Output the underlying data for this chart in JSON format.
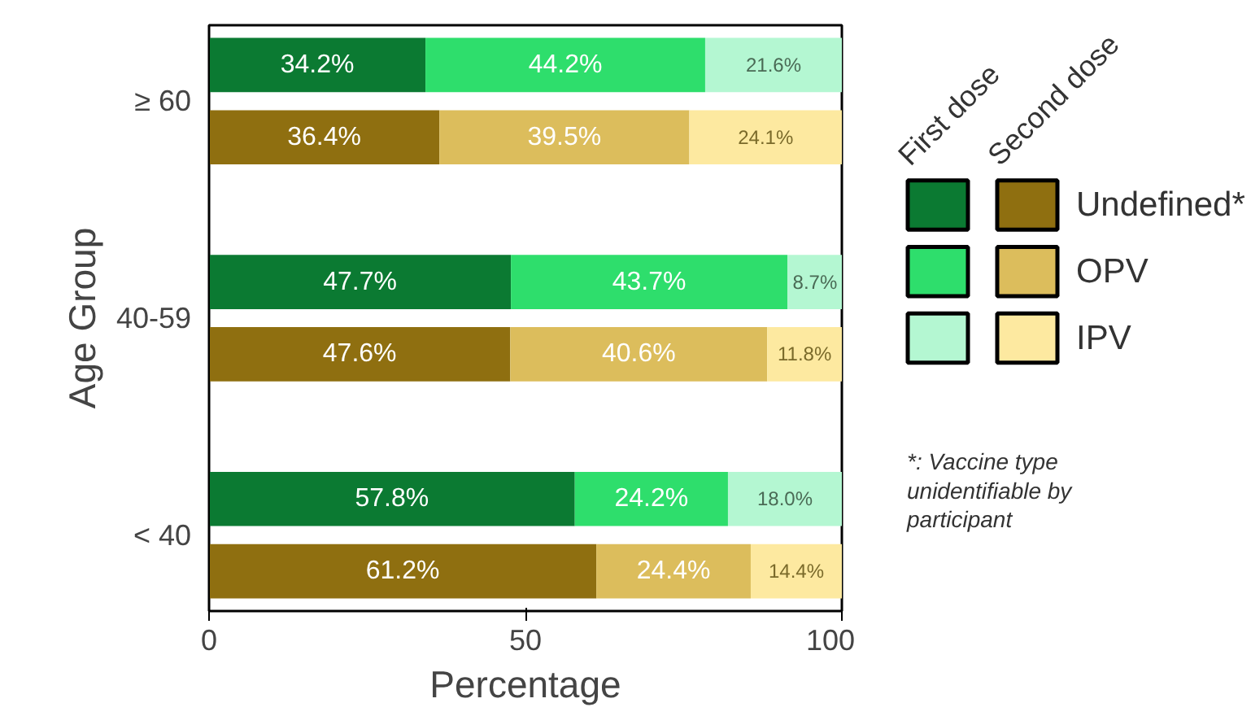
{
  "chart_data": {
    "type": "bar",
    "orientation": "horizontal",
    "stacked": true,
    "xlabel": "Percentage",
    "ylabel": "Age Group",
    "categories": [
      "≥ 60",
      null,
      null,
      "40-59",
      null,
      null,
      "< 40",
      null
    ],
    "series": [
      {
        "color": "#0b7a32",
        "values": [
          34.2,
          null,
          null,
          47.7,
          null,
          null,
          57.8,
          null
        ],
        "value_labels": [
          "34.2%",
          null,
          null,
          "47.7%",
          null,
          null,
          "57.8%",
          null
        ]
      },
      {
        "color": "#2ede6c",
        "values": [
          44.2,
          null,
          null,
          43.7,
          null,
          null,
          24.2,
          null
        ],
        "value_labels": [
          "44.2%",
          null,
          null,
          "43.7%",
          null,
          null,
          "24.2%",
          null
        ]
      },
      {
        "color": "#b4f7d2",
        "values": [
          21.6,
          null,
          null,
          8.7,
          null,
          null,
          18.0,
          null
        ],
        "value_labels": [
          "21.6%",
          null,
          null,
          "8.7%",
          null,
          null,
          "18.0%",
          null
        ]
      },
      {
        "name": "Undefined*",
        "color": "#8f6f10",
        "values": [
          null,
          36.4,
          null,
          null,
          47.6,
          null,
          null,
          61.2
        ],
        "value_labels": [
          null,
          "36.4%",
          null,
          null,
          "47.6%",
          null,
          null,
          "61.2%"
        ]
      },
      {
        "name": "OPV",
        "color": "#dcbd5c",
        "values": [
          null,
          39.5,
          null,
          null,
          40.6,
          null,
          null,
          24.4
        ],
        "value_labels": [
          null,
          "39.5%",
          null,
          null,
          "40.6%",
          null,
          null,
          "24.4%"
        ]
      },
      {
        "name": "IPV",
        "color": "#fde9a0",
        "values": [
          null,
          24.1,
          null,
          null,
          11.8,
          null,
          null,
          14.4
        ],
        "value_labels": [
          null,
          "24.1%",
          null,
          null,
          "11.8%",
          null,
          null,
          "14.4%"
        ]
      }
    ],
    "xlim": [
      0,
      100
    ],
    "xticks": [
      0,
      50,
      100
    ],
    "grid": false,
    "legend": "right",
    "annotations": [
      "First dose",
      "Second dose",
      "*: Vaccine type unidentifiable by participant"
    ]
  }
}
